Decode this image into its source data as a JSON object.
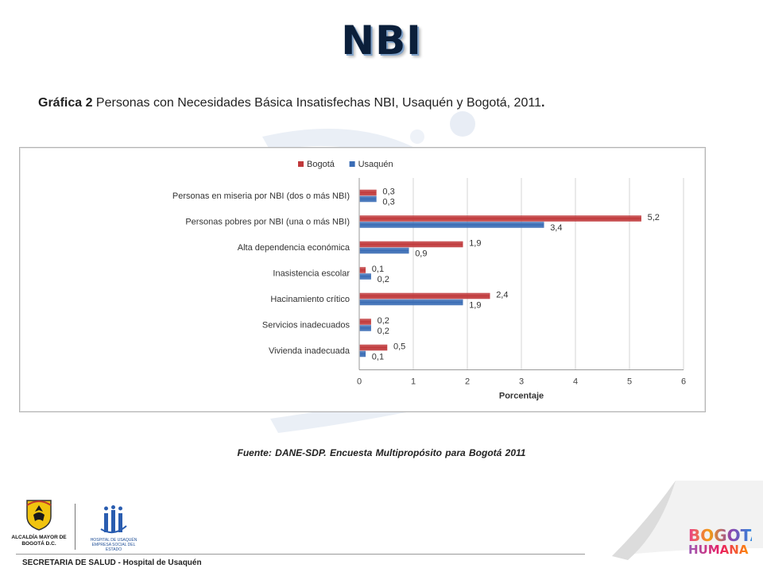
{
  "slide": {
    "title": "NBI",
    "subtitle_bold": "Gráfica 2",
    "subtitle_rest": " Personas con Necesidades Básica Insatisfechas NBI, Usaquén y Bogotá, 2011",
    "subtitle_end": ".",
    "source": "Fuente: DANE-SDP. Encuesta Multipropósito para Bogotá 2011",
    "footer": "SECRETARIA DE SALUD - Hospital de Usaquén"
  },
  "logos": {
    "alcaldia": "ALCALDÍA MAYOR DE BOGOTÁ D.C.",
    "hospital": "HOSPITAL DE USAQUÉN EMPRESA SOCIAL DEL ESTADO",
    "bogota_line1": "BOGOTÁ",
    "bogota_line2": "HUMANA"
  },
  "chart_data": {
    "type": "bar",
    "orientation": "horizontal",
    "categories": [
      "Personas en miseria por NBI (dos o más NBI)",
      "Personas pobres por NBI (una o más NBI)",
      "Alta dependencia económica",
      "Inasistencia escolar",
      "Hacinamiento crítico",
      "Servicios inadecuados",
      "Vivienda inadecuada"
    ],
    "series": [
      {
        "name": "Bogotá",
        "values": [
          0.3,
          5.2,
          1.9,
          0.1,
          2.4,
          0.2,
          0.5
        ],
        "labels": [
          "0,3",
          "5,2",
          "1,9",
          "0,1",
          "2,4",
          "0,2",
          "0,5"
        ],
        "color": "#c0393b"
      },
      {
        "name": "Usaquén",
        "values": [
          0.3,
          3.4,
          0.9,
          0.2,
          1.9,
          0.2,
          0.1
        ],
        "labels": [
          "0,3",
          "3,4",
          "0,9",
          "0,2",
          "1,9",
          "0,2",
          "0,1"
        ],
        "color": "#3a6cb5"
      }
    ],
    "xlabel": "Porcentaje",
    "xlim": [
      0,
      6
    ],
    "xticks": [
      "0",
      "1",
      "2",
      "3",
      "4",
      "5",
      "6"
    ],
    "legend_position": "top",
    "grid": "vertical"
  }
}
